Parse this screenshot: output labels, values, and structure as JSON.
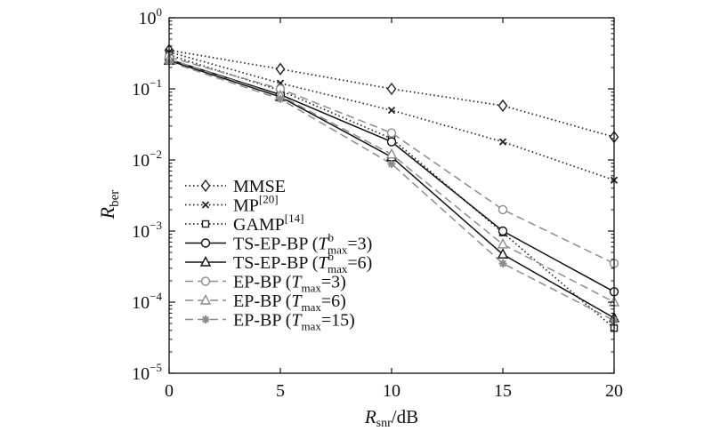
{
  "chart_data": {
    "type": "line",
    "title": "",
    "xlabel": "R",
    "xlabel_sub": "snr",
    "xlabel_unit": "/dB",
    "ylabel": "R",
    "ylabel_sub": "ber",
    "x": [
      0,
      5,
      10,
      15,
      20
    ],
    "xlim": [
      0,
      20
    ],
    "ylim_exponent": [
      -5,
      0
    ],
    "y_scale": "log",
    "x_ticks": [
      "0",
      "5",
      "10",
      "15",
      "20"
    ],
    "y_ticks": [
      {
        "base": "10",
        "exp": "0"
      },
      {
        "base": "10",
        "exp": "−1"
      },
      {
        "base": "10",
        "exp": "−2"
      },
      {
        "base": "10",
        "exp": "−3"
      },
      {
        "base": "10",
        "exp": "−4"
      },
      {
        "base": "10",
        "exp": "−5"
      }
    ],
    "grid": false,
    "legend_position": "bottom-left",
    "series": [
      {
        "id": "mmse",
        "legend": [
          {
            "t": "MMSE"
          }
        ],
        "style": "dotted",
        "color": "#222222",
        "marker": "diamond",
        "values": [
          0.35,
          0.19,
          0.1,
          0.058,
          0.021
        ]
      },
      {
        "id": "mp",
        "legend": [
          {
            "t": "MP"
          },
          {
            "t": "[20]",
            "s": "sup"
          }
        ],
        "style": "dotted",
        "color": "#222222",
        "marker": "x",
        "values": [
          0.33,
          0.12,
          0.05,
          0.018,
          0.0052
        ]
      },
      {
        "id": "gamp",
        "legend": [
          {
            "t": "GAMP"
          },
          {
            "t": "[14]",
            "s": "sup"
          }
        ],
        "style": "dotted",
        "color": "#222222",
        "marker": "square",
        "values": [
          0.3,
          0.095,
          0.02,
          0.00095,
          4.3e-05
        ]
      },
      {
        "id": "tsepbp3",
        "legend": [
          {
            "t": "TS-EP-BP ("
          },
          {
            "t": "T",
            "s": "it"
          },
          {
            "t": "b",
            "s": "sup"
          },
          {
            "t": "max",
            "s": "sub"
          },
          {
            "t": "=3)"
          }
        ],
        "style": "solid",
        "color": "#111111",
        "marker": "circle",
        "values": [
          0.26,
          0.083,
          0.018,
          0.001,
          0.00014
        ]
      },
      {
        "id": "tsepbp6",
        "legend": [
          {
            "t": "TS-EP-BP ("
          },
          {
            "t": "T",
            "s": "it"
          },
          {
            "t": "b",
            "s": "sup"
          },
          {
            "t": "max",
            "s": "sub"
          },
          {
            "t": "=6)"
          }
        ],
        "style": "solid",
        "color": "#111111",
        "marker": "triangle",
        "values": [
          0.25,
          0.077,
          0.011,
          0.00047,
          6e-05
        ]
      },
      {
        "id": "epbp3",
        "legend": [
          {
            "t": "EP-BP ("
          },
          {
            "t": "T",
            "s": "it"
          },
          {
            "t": "max",
            "s": "sub"
          },
          {
            "t": "=3)"
          }
        ],
        "style": "dashed",
        "color": "#8c8c8c",
        "marker": "circle",
        "values": [
          0.28,
          0.1,
          0.024,
          0.002,
          0.00035
        ]
      },
      {
        "id": "epbp6",
        "legend": [
          {
            "t": "EP-BP ("
          },
          {
            "t": "T",
            "s": "it"
          },
          {
            "t": "max",
            "s": "sub"
          },
          {
            "t": "=6)"
          }
        ],
        "style": "dashed",
        "color": "#8c8c8c",
        "marker": "triangle",
        "values": [
          0.26,
          0.08,
          0.012,
          0.00065,
          0.0001
        ]
      },
      {
        "id": "epbp15",
        "legend": [
          {
            "t": "EP-BP ("
          },
          {
            "t": "T",
            "s": "it"
          },
          {
            "t": "max",
            "s": "sub"
          },
          {
            "t": "=15)"
          }
        ],
        "style": "dashed",
        "color": "#8c8c8c",
        "marker": "asterisk",
        "values": [
          0.24,
          0.072,
          0.0088,
          0.00035,
          5.5e-05
        ]
      }
    ]
  }
}
